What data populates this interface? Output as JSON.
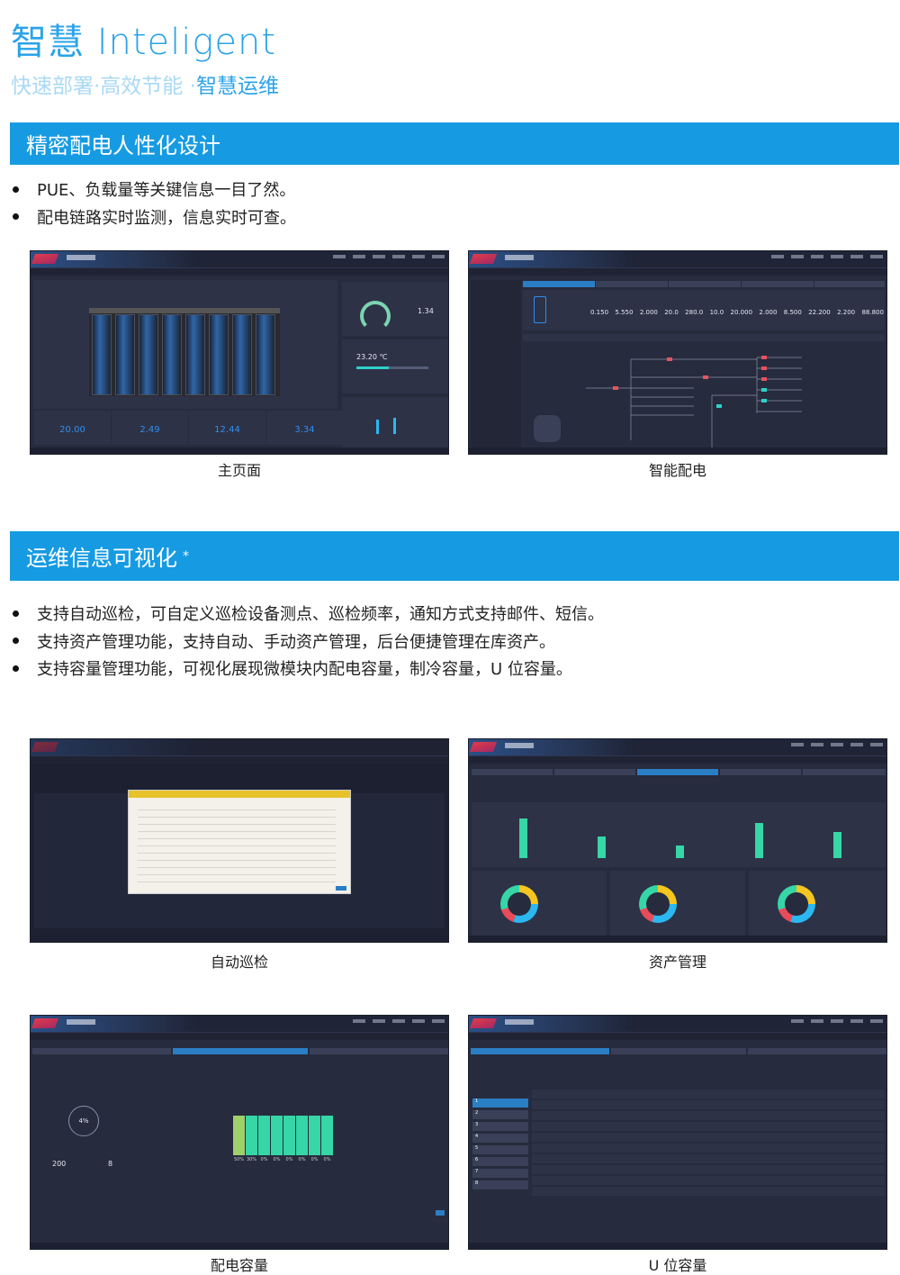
{
  "header": {
    "title": "智慧 Inteligent",
    "subtitle_a": "快速部署·高效节能 ·",
    "subtitle_b": "智慧运维"
  },
  "section1": {
    "title": "精密配电人性化设计",
    "bullets": [
      "PUE、负载量等关键信息一目了然。",
      "配电链路实时监测，信息实时可查。"
    ]
  },
  "section2": {
    "title": "运维信息可视化",
    "mark": "*",
    "bullets": [
      "支持自动巡检，可自定义巡检设备测点、巡检频率，通知方式支持邮件、短信。",
      "支持资产管理功能，支持自动、手动资产管理，后台便捷管理在库资产。",
      "支持容量管理功能，可视化展现微模块内配电容量，制冷容量，U 位容量。"
    ]
  },
  "colors": {
    "accent": "#169be3",
    "screen_bg": "#262b3d"
  },
  "screens": {
    "home": {
      "caption": "主页面",
      "kpis": [
        "20.00",
        "2.49",
        "12.44",
        "3.34"
      ],
      "pue": "1.34",
      "temperature": "23.20 ℃"
    },
    "power": {
      "caption": "智能配电",
      "values": [
        "0.150",
        "5.550",
        "2.000",
        "20.0",
        "280.0",
        "10.0",
        "20.000",
        "2.000",
        "8.500",
        "22.200",
        "2.200",
        "88.800"
      ]
    },
    "inspection": {
      "caption": "自动巡检"
    },
    "assets": {
      "caption": "资产管理"
    },
    "capacity": {
      "caption": "配电容量",
      "ratio": "4%",
      "total": "200",
      "used": "8",
      "slots": [
        "50%",
        "30%",
        "0%",
        "0%",
        "0%",
        "0%",
        "0%",
        "0%"
      ]
    },
    "u_capacity": {
      "caption": "U 位容量",
      "rows": [
        "1",
        "2",
        "3",
        "4",
        "5",
        "6",
        "7",
        "8"
      ]
    }
  }
}
